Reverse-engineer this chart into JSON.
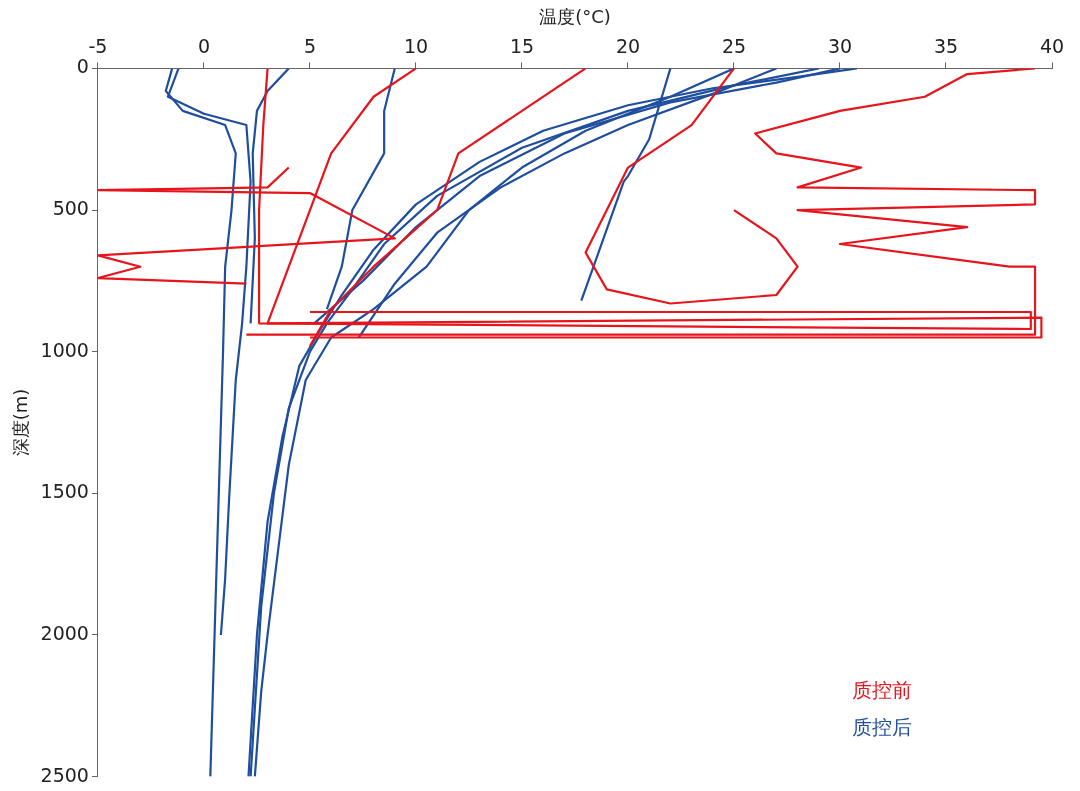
{
  "chart_data": {
    "type": "line",
    "xlabel": "温度(°C)",
    "ylabel": "深度(m)",
    "xlim": [
      -5,
      40
    ],
    "xticks": [
      -5,
      0,
      5,
      10,
      15,
      20,
      25,
      30,
      35,
      40
    ],
    "ylim": [
      2500,
      0
    ],
    "yticks": [
      0,
      500,
      1000,
      1500,
      2000,
      2500
    ],
    "grid": false,
    "legend": "bottom right",
    "marker": "none",
    "line_style": "solid",
    "series": [
      {
        "name": "质控前",
        "color": "#e8141c",
        "x": [
          39.2,
          36,
          34,
          30,
          26,
          27,
          31,
          28,
          39.2,
          39.2,
          28,
          36,
          30,
          38,
          39.2,
          39.2,
          2
        ],
        "values": [
          0,
          20,
          100,
          150,
          230,
          300,
          350,
          420,
          430,
          480,
          500,
          560,
          620,
          700,
          700,
          940,
          940
        ]
      },
      {
        "color": "#e8141c",
        "x": [
          25,
          23,
          20,
          19,
          18,
          19,
          22,
          27,
          28,
          27,
          25
        ],
        "values": [
          0,
          200,
          350,
          500,
          650,
          780,
          830,
          800,
          700,
          600,
          500
        ]
      },
      {
        "color": "#e8141c",
        "x": [
          4,
          3,
          -5,
          5,
          9,
          -5,
          -3,
          -5,
          2
        ],
        "values": [
          350,
          420,
          430,
          440,
          600,
          660,
          700,
          740,
          760
        ]
      },
      {
        "color": "#e8141c",
        "x": [
          10,
          8,
          6,
          5,
          3,
          39.5,
          39.5,
          5
        ],
        "values": [
          0,
          100,
          300,
          500,
          900,
          880,
          950,
          950
        ]
      },
      {
        "color": "#e8141c",
        "x": [
          18,
          15,
          12,
          11,
          8,
          6,
          5
        ],
        "values": [
          0,
          150,
          300,
          500,
          700,
          850,
          980
        ]
      },
      {
        "color": "#e8141c",
        "x": [
          3,
          2.8,
          2.6,
          2.6,
          39,
          39,
          5
        ],
        "values": [
          0,
          200,
          500,
          900,
          920,
          860,
          860
        ]
      },
      {
        "name": "质控后",
        "color": "#1f4e9e",
        "x": [
          30.8,
          28,
          24,
          20,
          16,
          13,
          10,
          8,
          6.5,
          5.5,
          4.5,
          3.7,
          3,
          2.5,
          2.1
        ],
        "values": [
          0,
          30,
          70,
          130,
          220,
          330,
          480,
          640,
          800,
          920,
          1050,
          1300,
          1600,
          2000,
          2500
        ]
      },
      {
        "color": "#1f4e9e",
        "x": [
          29,
          25,
          20,
          15,
          11,
          8.5,
          7,
          5.8,
          5,
          4,
          3.3,
          2.7,
          2.2
        ],
        "values": [
          0,
          60,
          150,
          280,
          450,
          620,
          780,
          900,
          1000,
          1200,
          1500,
          1900,
          2500
        ]
      },
      {
        "color": "#1f4e9e",
        "x": [
          30,
          27,
          22,
          17,
          13,
          10,
          7.5,
          5.2
        ],
        "values": [
          0,
          50,
          120,
          230,
          380,
          560,
          750,
          900
        ]
      },
      {
        "color": "#1f4e9e",
        "x": [
          27,
          24,
          20,
          17,
          14,
          11,
          9,
          7.3
        ],
        "values": [
          0,
          90,
          200,
          300,
          420,
          580,
          760,
          950
        ]
      },
      {
        "color": "#1f4e9e",
        "x": [
          25,
          22,
          18,
          15,
          12.5,
          10.5,
          8,
          6,
          4.8,
          4,
          3.5,
          3,
          2.7,
          2.4
        ],
        "values": [
          0,
          100,
          220,
          350,
          500,
          700,
          850,
          950,
          1100,
          1400,
          1700,
          2000,
          2200,
          2500
        ]
      },
      {
        "color": "#1f4e9e",
        "x": [
          -1.5,
          -1.8,
          -1,
          1,
          1.5,
          1.3,
          1,
          0.9,
          0.7,
          0.5,
          0.3
        ],
        "values": [
          0,
          80,
          150,
          200,
          300,
          500,
          700,
          1000,
          1500,
          2000,
          2500
        ]
      },
      {
        "color": "#1f4e9e",
        "x": [
          -1.2,
          -1.7,
          0,
          2,
          2.2,
          2,
          1.8,
          1.5,
          1.2,
          1,
          0.8
        ],
        "values": [
          0,
          100,
          160,
          200,
          400,
          700,
          900,
          1100,
          1500,
          1800,
          2000
        ]
      },
      {
        "color": "#1f4e9e",
        "x": [
          4,
          3,
          2.5,
          2.3,
          2.4,
          2.2
        ],
        "values": [
          0,
          80,
          150,
          300,
          600,
          900
        ]
      },
      {
        "color": "#1f4e9e",
        "x": [
          22,
          21,
          20,
          19.8,
          17.8
        ],
        "values": [
          0,
          250,
          380,
          400,
          820
        ]
      },
      {
        "color": "#1f4e9e",
        "x": [
          9,
          8.5,
          8.5,
          7,
          6.5,
          5.8
        ],
        "values": [
          0,
          150,
          300,
          500,
          700,
          850
        ]
      }
    ]
  }
}
